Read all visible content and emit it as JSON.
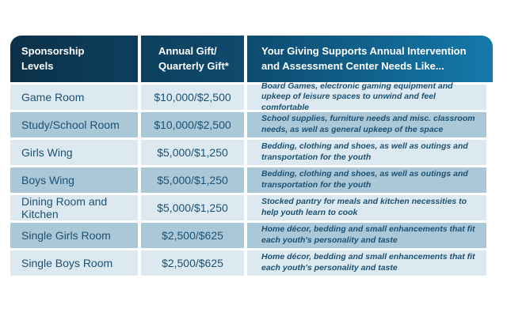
{
  "colors": {
    "header_gradient_start": "#0b3149",
    "header_gradient_mid": "#0e4a6d",
    "header_gradient_end": "#1479ab",
    "row_light": "#dde9f0",
    "row_medium": "#abc8d9",
    "text_navy": "#1c5174",
    "header_text": "#ffffff",
    "page_background": "#ffffff"
  },
  "table": {
    "headers": [
      "Sponsorship\nLevels",
      "Annual Gift/\nQuarterly Gift*",
      "Your Giving Supports Annual Intervention\nand Assessment Center Needs Like..."
    ],
    "rows": [
      {
        "level": "Game Room",
        "gift": "$10,000/$2,500",
        "description": "Board Games, electronic gaming equipment and upkeep of leisure spaces to unwind and feel comfortable"
      },
      {
        "level": "Study/School Room",
        "gift": "$10,000/$2,500",
        "description": "School supplies, furniture needs and misc. classroom needs, as well as general upkeep of the space"
      },
      {
        "level": "Girls Wing",
        "gift": "$5,000/$1,250",
        "description": "Bedding, clothing and shoes, as well as outings and transportation for the youth"
      },
      {
        "level": "Boys Wing",
        "gift": "$5,000/$1,250",
        "description": "Bedding, clothing and shoes, as well as outings and transportation for the youth"
      },
      {
        "level": "Dining Room and Kitchen",
        "gift": "$5,000/$1,250",
        "description": "Stocked pantry for meals and kitchen necessities to help youth learn to cook"
      },
      {
        "level": "Single Girls Room",
        "gift": "$2,500/$625",
        "description": "Home décor, bedding and small enhancements that fit each youth's personality and taste"
      },
      {
        "level": "Single Boys Room",
        "gift": "$2,500/$625",
        "description": "Home décor, bedding and small enhancements that fit each youth's personality and taste"
      }
    ]
  },
  "chart_data": {
    "type": "table",
    "title": "Sponsorship Levels",
    "columns": [
      "Sponsorship Levels",
      "Annual Gift/Quarterly Gift*",
      "Your Giving Supports Annual Intervention and Assessment Center Needs Like..."
    ],
    "rows": [
      [
        "Game Room",
        "$10,000/$2,500",
        "Board Games, electronic gaming equipment and upkeep of leisure spaces to unwind and feel comfortable"
      ],
      [
        "Study/School Room",
        "$10,000/$2,500",
        "School supplies, furniture needs and misc. classroom needs, as well as general upkeep of the space"
      ],
      [
        "Girls Wing",
        "$5,000/$1,250",
        "Bedding, clothing and shoes, as well as outings and transportation for the youth"
      ],
      [
        "Boys Wing",
        "$5,000/$1,250",
        "Bedding, clothing and shoes, as well as outings and transportation for the youth"
      ],
      [
        "Dining Room and Kitchen",
        "$5,000/$1,250",
        "Stocked pantry for meals and kitchen necessities to help youth learn to cook"
      ],
      [
        "Single Girls Room",
        "$2,500/$625",
        "Home décor, bedding and small enhancements that fit each youth's personality and taste"
      ],
      [
        "Single Boys Room",
        "$2,500/$625",
        "Home décor, bedding and small enhancements that fit each youth's personality and taste"
      ]
    ]
  }
}
